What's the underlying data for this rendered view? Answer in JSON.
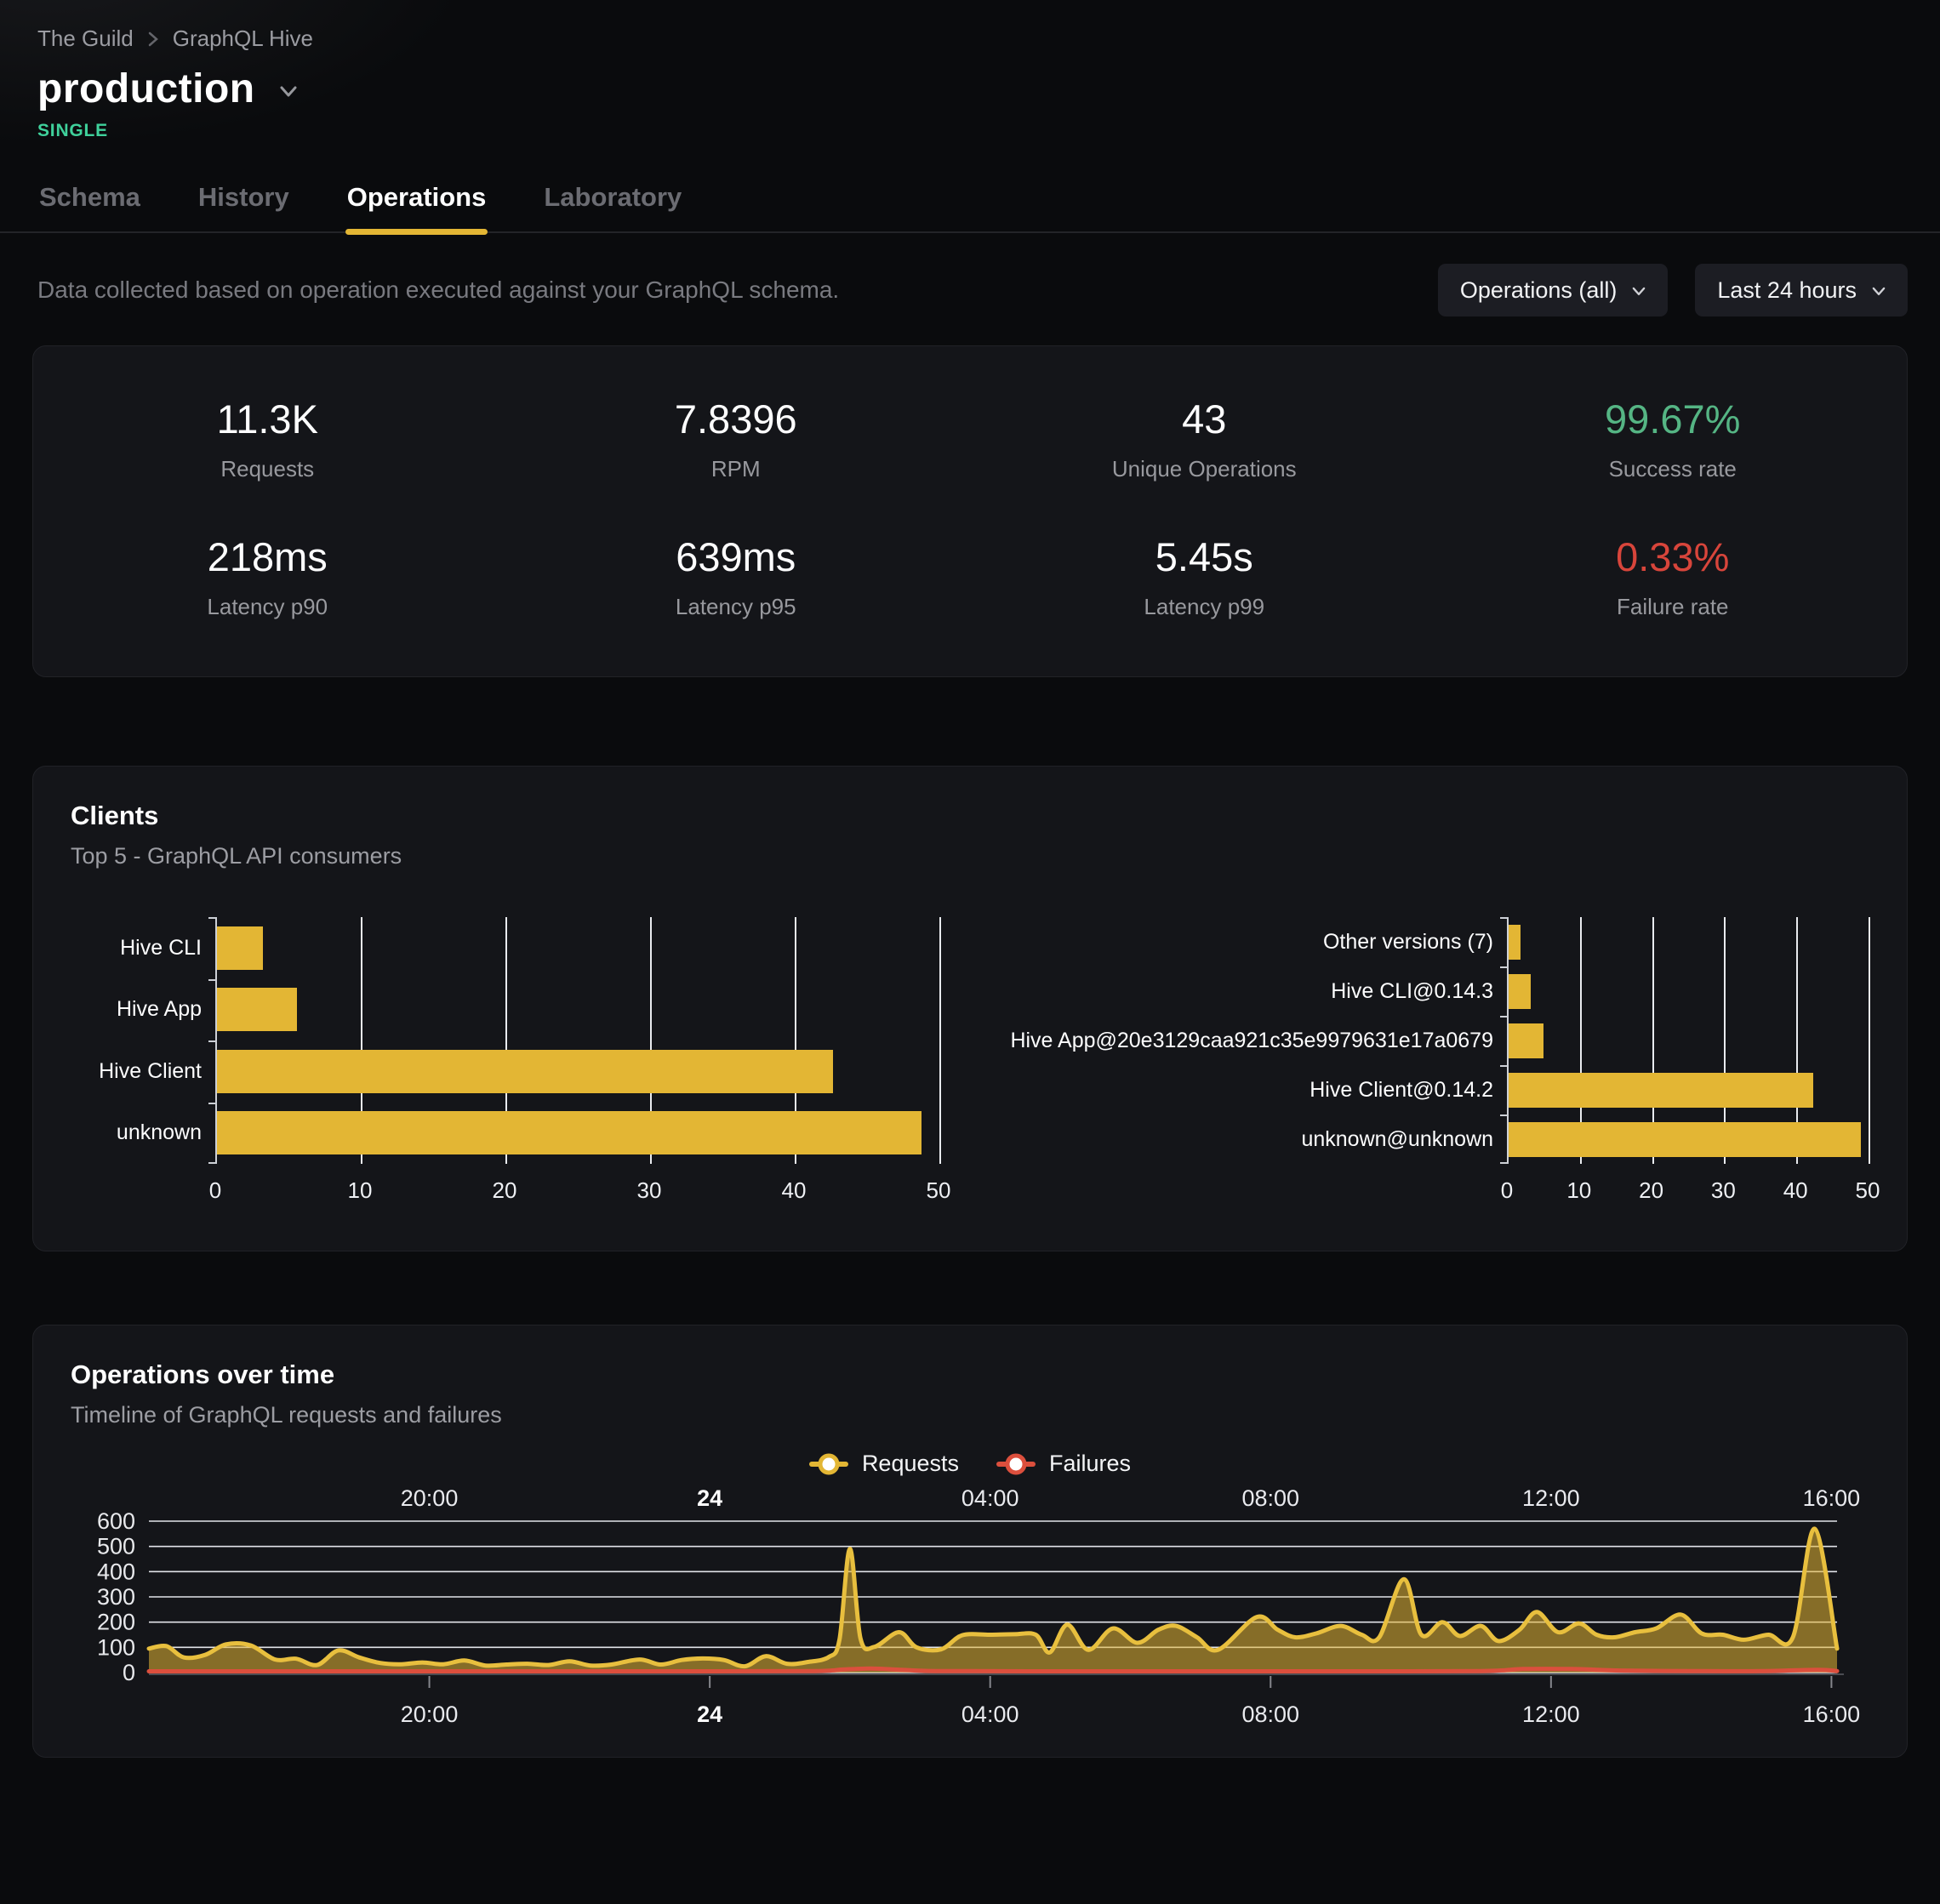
{
  "breadcrumb": {
    "items": [
      "The Guild",
      "GraphQL Hive"
    ]
  },
  "header": {
    "title": "production",
    "badge": "SINGLE"
  },
  "tabs": [
    {
      "label": "Schema",
      "active": false
    },
    {
      "label": "History",
      "active": false
    },
    {
      "label": "Operations",
      "active": true
    },
    {
      "label": "Laboratory",
      "active": false
    }
  ],
  "toolbar": {
    "description": "Data collected based on operation executed against your GraphQL schema.",
    "operations_filter_label": "Operations (all)",
    "period_filter_label": "Last 24 hours"
  },
  "stats": [
    {
      "value": "11.3K",
      "label": "Requests"
    },
    {
      "value": "7.8396",
      "label": "RPM"
    },
    {
      "value": "43",
      "label": "Unique Operations"
    },
    {
      "value": "99.67%",
      "label": "Success rate",
      "color": "#55b584"
    },
    {
      "value": "218ms",
      "label": "Latency p90"
    },
    {
      "value": "639ms",
      "label": "Latency p95"
    },
    {
      "value": "5.45s",
      "label": "Latency p99"
    },
    {
      "value": "0.33%",
      "label": "Failure rate",
      "color": "#d8453b"
    }
  ],
  "clients_card": {
    "title": "Clients",
    "subtitle": "Top 5 - GraphQL API consumers"
  },
  "timeline_card": {
    "title": "Operations over time",
    "subtitle": "Timeline of GraphQL requests and failures",
    "legend": [
      {
        "label": "Requests",
        "color": "#e3b634"
      },
      {
        "label": "Failures",
        "color": "#dc4f3d"
      }
    ]
  },
  "colors": {
    "accent_yellow": "#e3b634",
    "success_green": "#55b584",
    "failure_red": "#d8453b",
    "badge_green": "#3fd19b",
    "card_bg": "#141519",
    "page_bg": "#0a0b0d"
  },
  "chart_data": [
    {
      "id": "clients_by_name",
      "type": "bar",
      "orientation": "horizontal",
      "categories": [
        "Hive CLI",
        "Hive App",
        "Hive Client",
        "unknown"
      ],
      "values": [
        3.2,
        5.5,
        42.6,
        48.7
      ],
      "xlim": [
        0,
        50
      ],
      "xticks": [
        0,
        10,
        20,
        30,
        40,
        50
      ],
      "bar_color": "#e3b634",
      "grid": true
    },
    {
      "id": "clients_by_version",
      "type": "bar",
      "orientation": "horizontal",
      "categories": [
        "Other versions (7)",
        "Hive CLI@0.14.3",
        "Hive App@20e3129caa921c35e9979631e17a0679",
        "Hive Client@0.14.2",
        "unknown@unknown"
      ],
      "values": [
        1.6,
        3.1,
        4.8,
        42.2,
        48.8
      ],
      "xlim": [
        0,
        50
      ],
      "xticks": [
        0,
        10,
        20,
        30,
        40,
        50
      ],
      "bar_color": "#e3b634",
      "grid": true
    },
    {
      "id": "operations_over_time",
      "type": "area",
      "title": "Operations over time",
      "ylim": [
        0,
        600
      ],
      "yticks": [
        0,
        100,
        200,
        300,
        400,
        500,
        600
      ],
      "x_range": [
        0,
        24.08
      ],
      "x_axis_labels": [
        {
          "t": 4,
          "label": "20:00",
          "bold": false
        },
        {
          "t": 8,
          "label": "24",
          "bold": true
        },
        {
          "t": 12,
          "label": "04:00",
          "bold": false
        },
        {
          "t": 16,
          "label": "08:00",
          "bold": false
        },
        {
          "t": 20,
          "label": "12:00",
          "bold": false
        },
        {
          "t": 24,
          "label": "16:00",
          "bold": false
        }
      ],
      "series": [
        {
          "name": "Requests",
          "color": "#e8bf3e",
          "fill": "rgba(227,182,52,0.55)",
          "points": [
            [
              0,
              95
            ],
            [
              0.25,
              105
            ],
            [
              0.5,
              60
            ],
            [
              0.8,
              70
            ],
            [
              1.1,
              112
            ],
            [
              1.45,
              108
            ],
            [
              1.8,
              52
            ],
            [
              2.1,
              55
            ],
            [
              2.4,
              30
            ],
            [
              2.7,
              88
            ],
            [
              3.0,
              60
            ],
            [
              3.3,
              38
            ],
            [
              3.6,
              33
            ],
            [
              3.9,
              40
            ],
            [
              4.2,
              33
            ],
            [
              4.5,
              48
            ],
            [
              4.8,
              28
            ],
            [
              5.1,
              32
            ],
            [
              5.4,
              35
            ],
            [
              5.7,
              30
            ],
            [
              6.0,
              45
            ],
            [
              6.3,
              28
            ],
            [
              6.6,
              32
            ],
            [
              7.0,
              52
            ],
            [
              7.3,
              32
            ],
            [
              7.6,
              50
            ],
            [
              7.9,
              56
            ],
            [
              8.2,
              50
            ],
            [
              8.5,
              25
            ],
            [
              8.8,
              65
            ],
            [
              9.1,
              35
            ],
            [
              9.4,
              42
            ],
            [
              9.7,
              62
            ],
            [
              9.85,
              130
            ],
            [
              10.0,
              490
            ],
            [
              10.15,
              135
            ],
            [
              10.35,
              102
            ],
            [
              10.7,
              160
            ],
            [
              10.95,
              100
            ],
            [
              11.3,
              92
            ],
            [
              11.6,
              148
            ],
            [
              12.0,
              150
            ],
            [
              12.35,
              152
            ],
            [
              12.65,
              150
            ],
            [
              12.85,
              80
            ],
            [
              13.1,
              190
            ],
            [
              13.4,
              90
            ],
            [
              13.75,
              175
            ],
            [
              14.1,
              118
            ],
            [
              14.4,
              170
            ],
            [
              14.65,
              185
            ],
            [
              14.95,
              140
            ],
            [
              15.25,
              90
            ],
            [
              15.8,
              220
            ],
            [
              16.1,
              170
            ],
            [
              16.35,
              140
            ],
            [
              16.65,
              155
            ],
            [
              17.0,
              185
            ],
            [
              17.3,
              150
            ],
            [
              17.55,
              140
            ],
            [
              17.9,
              370
            ],
            [
              18.15,
              150
            ],
            [
              18.45,
              200
            ],
            [
              18.7,
              145
            ],
            [
              19.0,
              185
            ],
            [
              19.25,
              125
            ],
            [
              19.55,
              170
            ],
            [
              19.8,
              240
            ],
            [
              20.1,
              160
            ],
            [
              20.4,
              195
            ],
            [
              20.65,
              150
            ],
            [
              20.9,
              140
            ],
            [
              21.2,
              160
            ],
            [
              21.5,
              175
            ],
            [
              21.85,
              230
            ],
            [
              22.15,
              155
            ],
            [
              22.45,
              150
            ],
            [
              22.75,
              130
            ],
            [
              23.1,
              150
            ],
            [
              23.45,
              140
            ],
            [
              23.76,
              570
            ],
            [
              24.08,
              95
            ]
          ]
        },
        {
          "name": "Failures",
          "color": "#dc4f3d",
          "fill": "none",
          "points": [
            [
              0,
              5
            ],
            [
              2,
              5
            ],
            [
              4,
              5
            ],
            [
              6,
              5
            ],
            [
              8,
              5
            ],
            [
              9.5,
              6
            ],
            [
              9.9,
              12
            ],
            [
              10.3,
              16
            ],
            [
              10.8,
              10
            ],
            [
              11.3,
              6
            ],
            [
              13,
              5
            ],
            [
              15,
              5
            ],
            [
              17,
              5
            ],
            [
              19.0,
              6
            ],
            [
              19.6,
              14
            ],
            [
              20.3,
              14
            ],
            [
              21.0,
              8
            ],
            [
              22.0,
              6
            ],
            [
              23.0,
              6
            ],
            [
              23.8,
              11
            ],
            [
              24.08,
              6
            ]
          ]
        }
      ]
    }
  ]
}
